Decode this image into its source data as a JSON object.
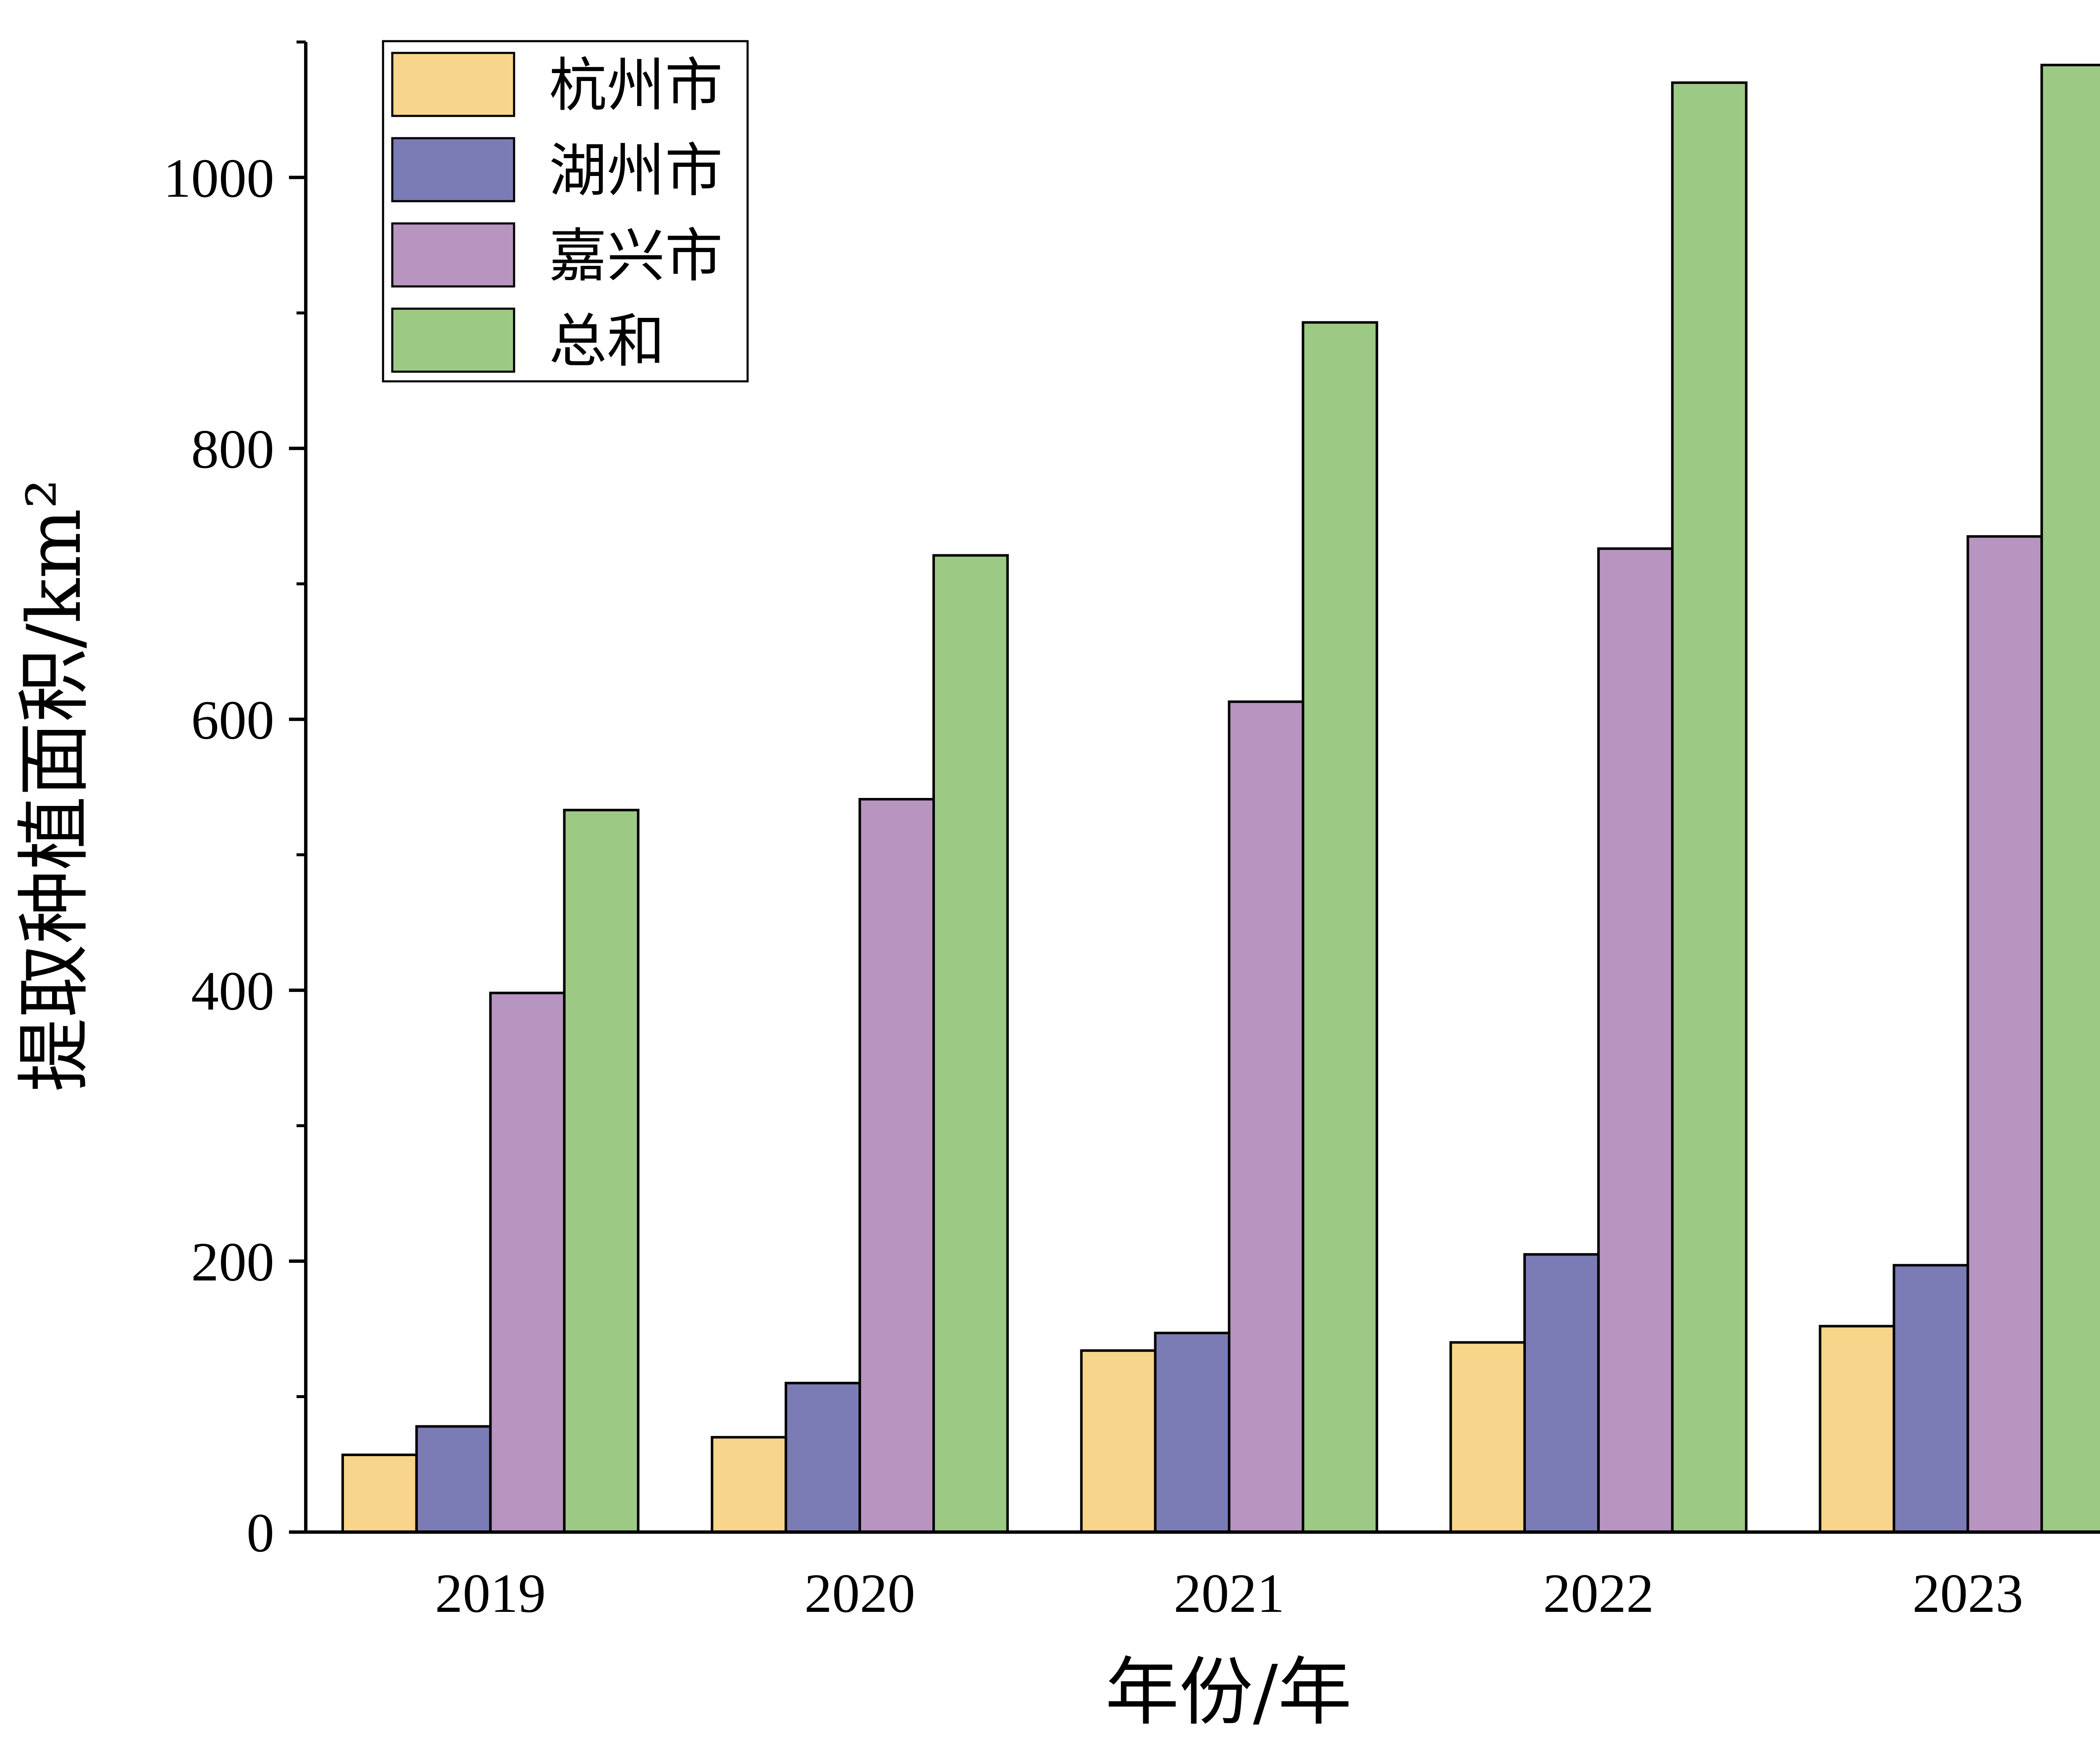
{
  "chart_data": {
    "type": "bar",
    "title": "",
    "xlabel": "年份/年",
    "ylabel": "提取种植面积/km²",
    "categories": [
      "2019",
      "2020",
      "2021",
      "2022",
      "2023"
    ],
    "ylim": [
      0,
      1100
    ],
    "yticks": [
      0,
      200,
      400,
      600,
      800,
      1000
    ],
    "yticks_minor": [
      100,
      300,
      500,
      700,
      900,
      1100
    ],
    "grid": false,
    "legend_position": "top-left",
    "series": [
      {
        "name": "杭州市",
        "color": "#F7D58A",
        "values": [
          57,
          70,
          134,
          140,
          152
        ]
      },
      {
        "name": "湖州市",
        "color": "#7B7BB5",
        "values": [
          78,
          110,
          147,
          205,
          197
        ]
      },
      {
        "name": "嘉兴市",
        "color": "#B894C0",
        "values": [
          398,
          541,
          613,
          726,
          735
        ]
      },
      {
        "name": "总和",
        "color": "#9CCA84",
        "values": [
          533,
          721,
          893,
          1070,
          1083
        ]
      }
    ]
  }
}
